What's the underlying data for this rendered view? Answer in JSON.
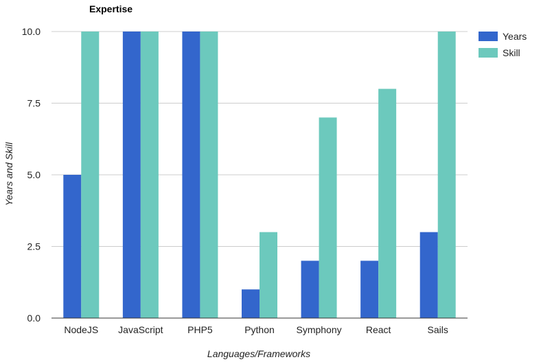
{
  "chart_data": {
    "type": "bar",
    "title": "Expertise",
    "xlabel": "Languages/Frameworks",
    "ylabel": "Years and Skill",
    "categories": [
      "NodeJS",
      "JavaScript",
      "PHP5",
      "Python",
      "Symphony",
      "React",
      "Sails"
    ],
    "series": [
      {
        "name": "Years",
        "color": "#3366cc",
        "values": [
          5,
          10,
          10,
          1,
          2,
          2,
          3
        ]
      },
      {
        "name": "Skill",
        "color": "#6cc9bd",
        "values": [
          10,
          10,
          10,
          3,
          7,
          8,
          10
        ]
      }
    ],
    "ylim": [
      0,
      10
    ],
    "yticks": [
      "0.0",
      "2.5",
      "5.0",
      "7.5",
      "10.0"
    ],
    "grid": true,
    "legend": "right"
  }
}
